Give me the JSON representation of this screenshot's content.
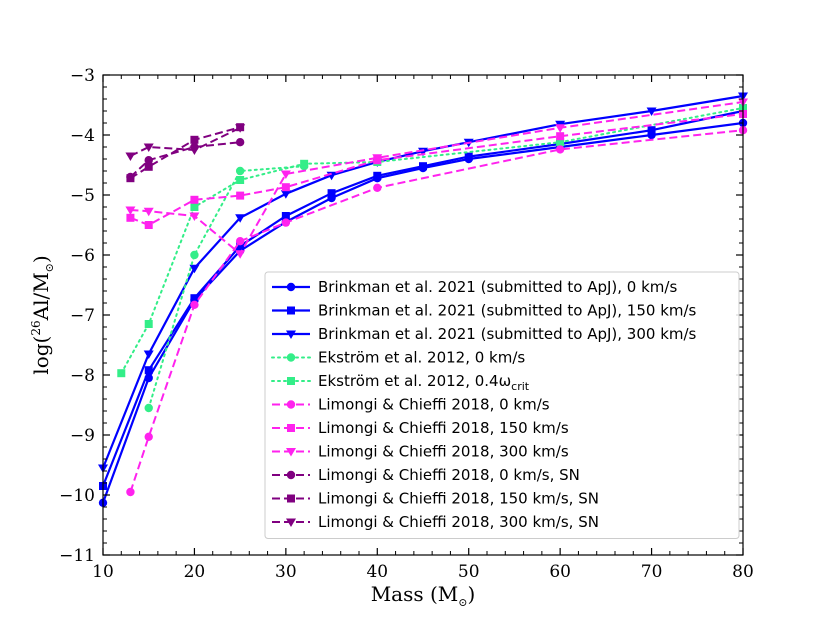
{
  "chart_data": {
    "type": "line",
    "xlabel": "Mass (M",
    "xlabel_sym": "⊙",
    "xlabel_end": ")",
    "ylabel_pre": "log(",
    "ylabel_sup": "26",
    "ylabel_mid": "Al/M",
    "ylabel_sub": "⊙",
    "ylabel_end": ")",
    "xlim": [
      10,
      80
    ],
    "ylim": [
      -11,
      -3
    ],
    "xticks": [
      10,
      20,
      30,
      40,
      50,
      60,
      70,
      80
    ],
    "yticks": [
      -11,
      -10,
      -9,
      -8,
      -7,
      -6,
      -5,
      -4,
      -3
    ],
    "xtick_labels": [
      "10",
      "20",
      "30",
      "40",
      "50",
      "60",
      "70",
      "80"
    ],
    "ytick_labels": [
      "−11",
      "−10",
      "−9",
      "−8",
      "−7",
      "−6",
      "−5",
      "−4",
      "−3"
    ],
    "legend_position": "lower-right",
    "series": [
      {
        "name": "Brinkman et al. 2021 (submitted to ApJ), 0 km/s",
        "color": "#0000ff",
        "style": "solid",
        "marker": "circle",
        "x": [
          10,
          15,
          20,
          25,
          30,
          35,
          40,
          45,
          50,
          60,
          70,
          80
        ],
        "y": [
          -10.13,
          -8.05,
          -6.75,
          -5.93,
          -5.45,
          -5.05,
          -4.72,
          -4.55,
          -4.4,
          -4.2,
          -4.0,
          -3.8
        ]
      },
      {
        "name": "Brinkman et al. 2021 (submitted to ApJ), 150 km/s",
        "color": "#0000ff",
        "style": "solid",
        "marker": "square",
        "x": [
          10,
          15,
          20,
          25,
          30,
          35,
          40,
          45,
          50,
          60,
          70,
          80
        ],
        "y": [
          -9.85,
          -7.92,
          -6.72,
          -5.85,
          -5.35,
          -4.97,
          -4.68,
          -4.52,
          -4.36,
          -4.15,
          -3.92,
          -3.6
        ]
      },
      {
        "name": "Brinkman et al. 2021 (submitted to ApJ), 300 km/s",
        "color": "#0000ff",
        "style": "solid",
        "marker": "triangle-down",
        "x": [
          10,
          15,
          20,
          25,
          30,
          35,
          40,
          45,
          50,
          60,
          70,
          80
        ],
        "y": [
          -9.55,
          -7.65,
          -6.22,
          -5.38,
          -4.98,
          -4.67,
          -4.45,
          -4.27,
          -4.12,
          -3.82,
          -3.6,
          -3.35
        ]
      },
      {
        "name": "Ekström et al. 2012, 0 km/s",
        "color": "#33ee88",
        "style": "dotted",
        "marker": "circle",
        "x": [
          15,
          20,
          25,
          32
        ],
        "y": [
          -8.55,
          -6.0,
          -4.6,
          -4.52
        ]
      },
      {
        "name": "Ekström et al. 2012, 0.4ω",
        "name_sub": "crit",
        "color": "#33ee88",
        "style": "dotted",
        "marker": "square",
        "x": [
          12,
          15,
          20,
          25,
          32,
          40,
          60,
          80
        ],
        "y": [
          -7.97,
          -7.15,
          -5.2,
          -4.75,
          -4.48,
          -4.45,
          -4.12,
          -3.55
        ]
      },
      {
        "name": "Limongi & Chieffi 2018, 0 km/s",
        "color": "#ff22ee",
        "style": "dashed",
        "marker": "circle",
        "x": [
          13,
          15,
          20,
          25,
          30,
          40,
          60,
          80
        ],
        "y": [
          -9.95,
          -9.03,
          -6.83,
          -5.77,
          -5.46,
          -4.88,
          -4.24,
          -3.92
        ]
      },
      {
        "name": "Limongi & Chieffi 2018, 150 km/s",
        "color": "#ff22ee",
        "style": "dashed",
        "marker": "square",
        "x": [
          13,
          15,
          20,
          25,
          30,
          40,
          60,
          80
        ],
        "y": [
          -5.38,
          -5.5,
          -5.08,
          -5.01,
          -4.87,
          -4.42,
          -4.02,
          -3.65
        ]
      },
      {
        "name": "Limongi & Chieffi 2018, 300 km/s",
        "color": "#ff22ee",
        "style": "dashed",
        "marker": "triangle-down",
        "x": [
          13,
          15,
          20,
          25,
          30,
          40,
          60,
          80
        ],
        "y": [
          -5.25,
          -5.27,
          -5.35,
          -5.98,
          -4.65,
          -4.38,
          -3.88,
          -3.45
        ]
      },
      {
        "name": "Limongi & Chieffi 2018, 0 km/s, SN",
        "color": "#800080",
        "style": "dashed",
        "marker": "circle",
        "x": [
          13,
          15,
          20,
          25
        ],
        "y": [
          -4.7,
          -4.42,
          -4.2,
          -4.12
        ]
      },
      {
        "name": "Limongi & Chieffi 2018, 150 km/s, SN",
        "color": "#800080",
        "style": "dashed",
        "marker": "square",
        "x": [
          13,
          15,
          20,
          25
        ],
        "y": [
          -4.72,
          -4.53,
          -4.08,
          -3.87
        ]
      },
      {
        "name": "Limongi & Chieffi 2018, 300 km/s, SN",
        "color": "#800080",
        "style": "dashed",
        "marker": "triangle-down",
        "x": [
          13,
          15,
          20,
          25
        ],
        "y": [
          -4.35,
          -4.2,
          -4.25,
          -3.88
        ]
      }
    ]
  }
}
